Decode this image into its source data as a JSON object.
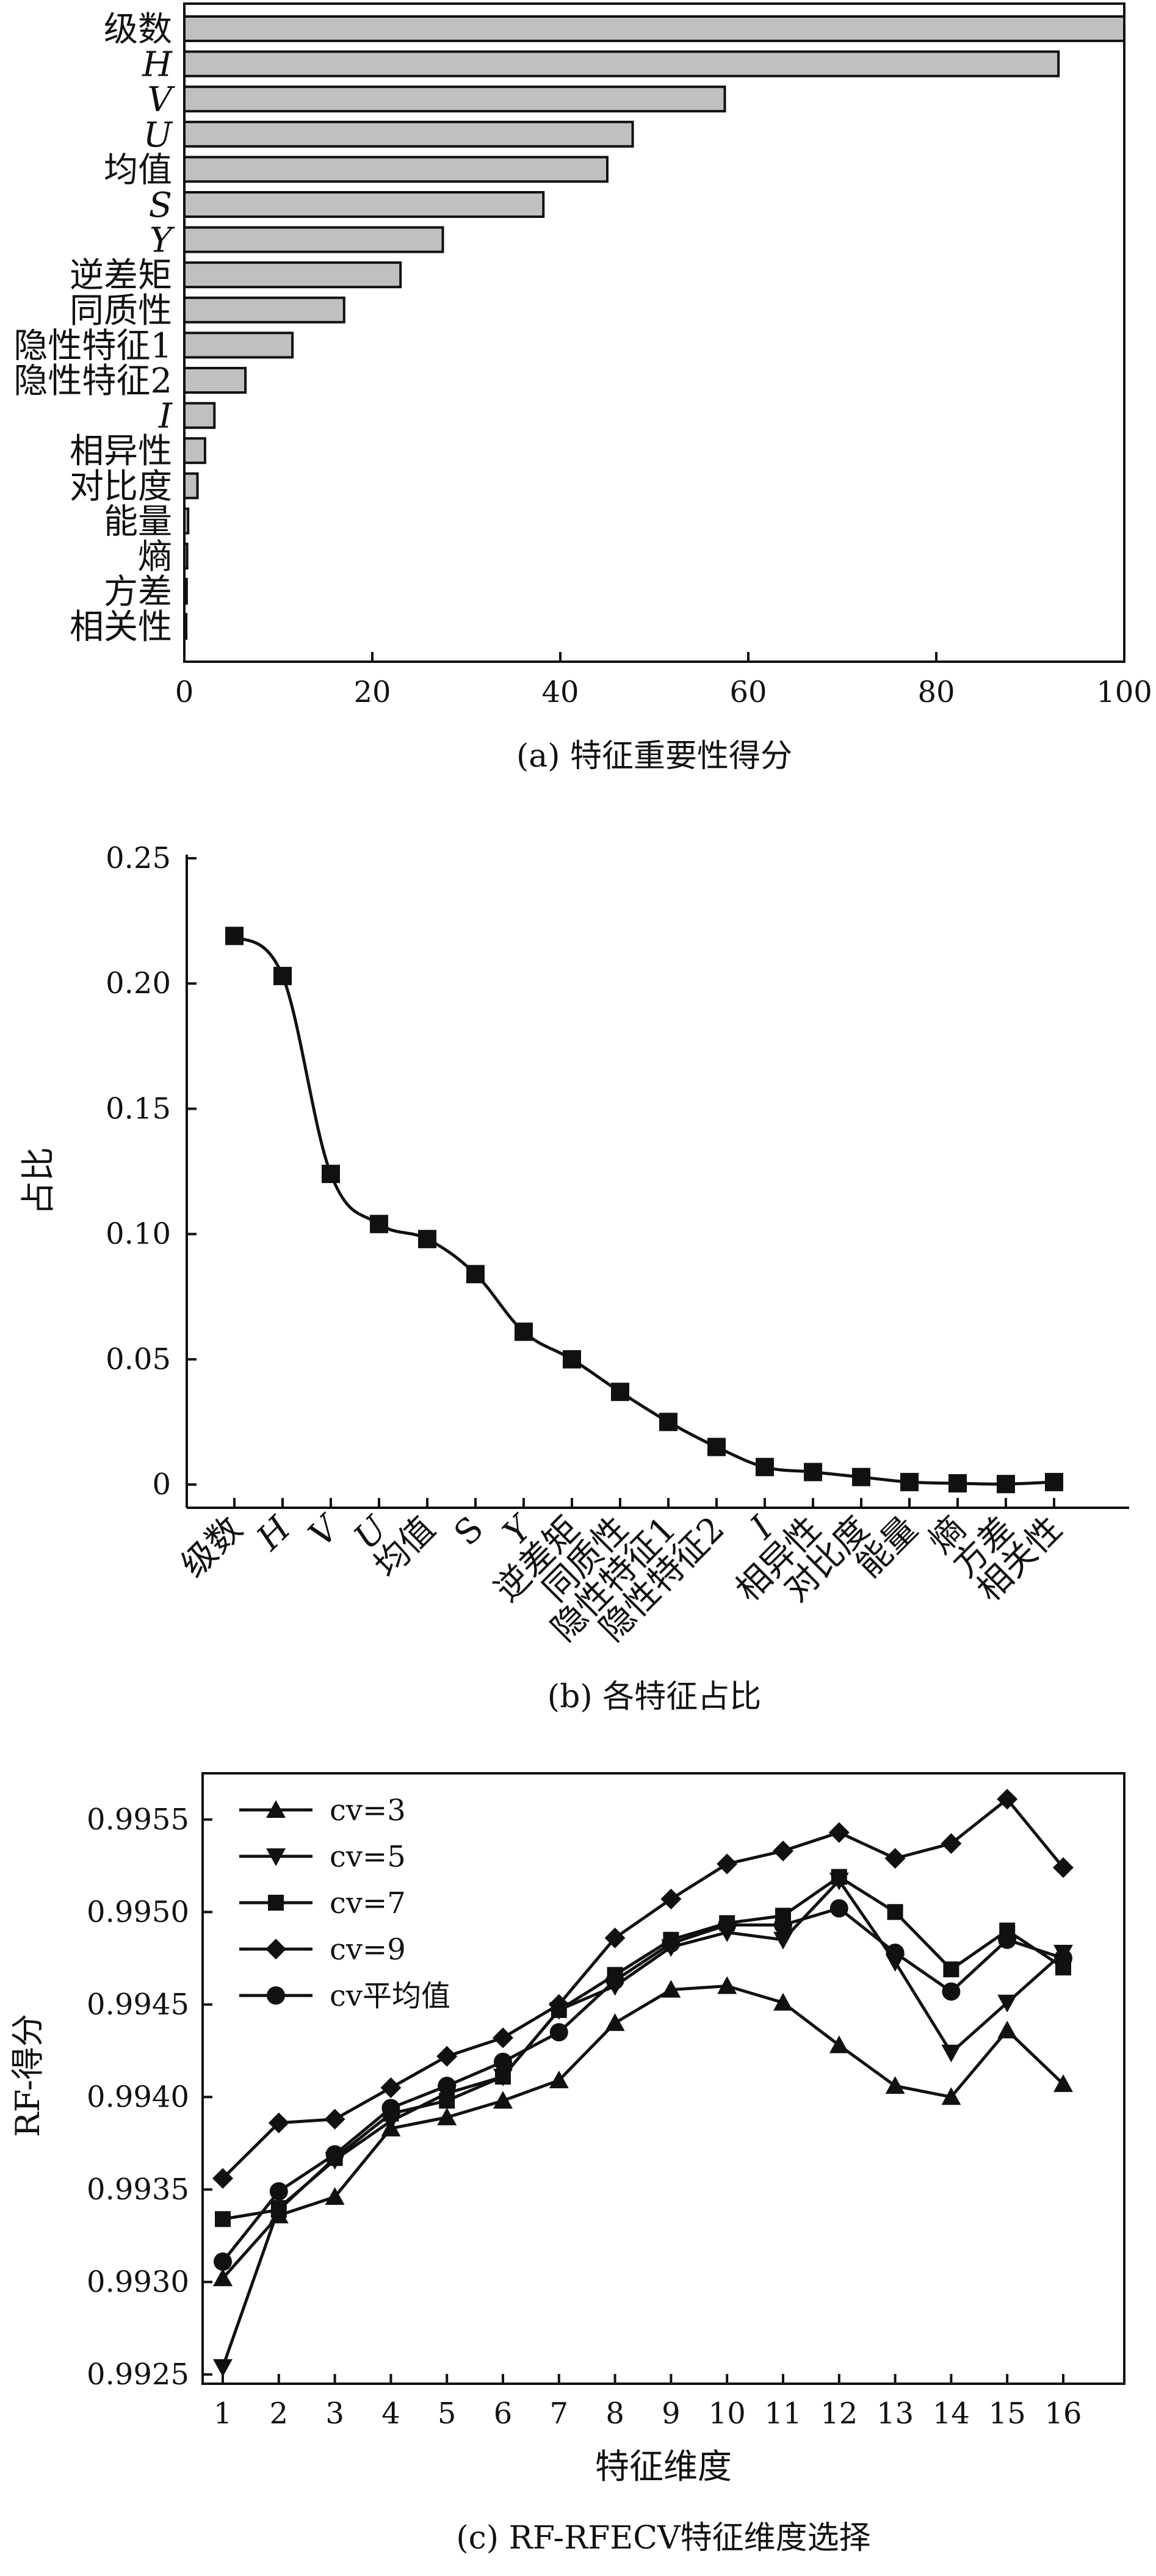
{
  "chart_data": [
    {
      "type": "bar",
      "orientation": "horizontal",
      "caption": "(a) 特征重要性得分",
      "categories": [
        "级数",
        "H",
        "V",
        "U",
        "均值",
        "S",
        "Y",
        "逆差矩",
        "同质性",
        "隐性特征1",
        "隐性特征2",
        "I",
        "相异性",
        "对比度",
        "能量",
        "熵",
        "方差",
        "相关性"
      ],
      "italic_categories": [
        "H",
        "V",
        "U",
        "S",
        "Y",
        "I"
      ],
      "values": [
        100,
        93,
        57.5,
        47.7,
        45,
        38.2,
        27.5,
        23,
        17,
        11.5,
        6.5,
        3.2,
        2.2,
        1.4,
        0.4,
        0.3,
        0.25,
        0.2
      ],
      "xlim": [
        0,
        100
      ],
      "xticks": [
        0,
        20,
        40,
        60,
        80,
        100
      ],
      "bar_color": "#c0c0c0"
    },
    {
      "type": "line",
      "caption": "(b) 各特征占比",
      "ylabel": "占比",
      "categories": [
        "级数",
        "H",
        "V",
        "U",
        "均值",
        "S",
        "Y",
        "逆差矩",
        "同质性",
        "隐性特征1",
        "隐性特征2",
        "I",
        "相异性",
        "对比度",
        "能量",
        "熵",
        "方差",
        "相关性"
      ],
      "italic_categories": [
        "H",
        "V",
        "U",
        "Y",
        "I"
      ],
      "values": [
        0.219,
        0.203,
        0.124,
        0.104,
        0.098,
        0.084,
        0.061,
        0.05,
        0.037,
        0.025,
        0.015,
        0.007,
        0.005,
        0.003,
        0.001,
        0.0005,
        0.0002,
        0.001
      ],
      "ylim": [
        0,
        0.25
      ],
      "yticks": [
        0,
        0.05,
        0.1,
        0.15,
        0.2,
        0.25
      ],
      "ytick_labels": [
        "0",
        "0.05",
        "0.10",
        "0.15",
        "0.20",
        "0.25"
      ],
      "marker": "square",
      "smooth": true
    },
    {
      "type": "line",
      "caption": "(c) RF-RFECV特征维度选择",
      "xlabel": "特征维度",
      "ylabel": "RF-得分",
      "x": [
        1,
        2,
        3,
        4,
        5,
        6,
        7,
        8,
        9,
        10,
        11,
        12,
        13,
        14,
        15,
        16
      ],
      "ylim": [
        0.99245,
        0.99575
      ],
      "yticks": [
        0.9925,
        0.993,
        0.9935,
        0.994,
        0.9945,
        0.995,
        0.9955
      ],
      "ytick_labels": [
        "0.9925",
        "0.9930",
        "0.9935",
        "0.9940",
        "0.9945",
        "0.9950",
        "0.9955"
      ],
      "legend": "top-left",
      "series": [
        {
          "name": "cv=3",
          "marker": "triangle-up",
          "values": [
            0.99302,
            0.99336,
            0.99346,
            0.99383,
            0.99389,
            0.99398,
            0.99409,
            0.9944,
            0.99458,
            0.9946,
            0.99451,
            0.99428,
            0.99406,
            0.994,
            0.99436,
            0.99407
          ]
        },
        {
          "name": "cv=5",
          "marker": "triangle-down",
          "values": [
            0.99254,
            0.9934,
            0.99366,
            0.99387,
            0.99402,
            0.99411,
            0.99447,
            0.9946,
            0.99481,
            0.99489,
            0.99485,
            0.99517,
            0.99473,
            0.99424,
            0.99451,
            0.99478
          ]
        },
        {
          "name": "cv=7",
          "marker": "square",
          "values": [
            0.99334,
            0.99339,
            0.99367,
            0.99391,
            0.99398,
            0.99411,
            0.99447,
            0.99466,
            0.99485,
            0.99494,
            0.99498,
            0.99519,
            0.995,
            0.99469,
            0.9949,
            0.9947
          ]
        },
        {
          "name": "cv=9",
          "marker": "diamond",
          "values": [
            0.99356,
            0.99386,
            0.99388,
            0.99405,
            0.99422,
            0.99432,
            0.9945,
            0.99486,
            0.99507,
            0.99526,
            0.99533,
            0.99543,
            0.99529,
            0.99537,
            0.99561,
            0.99524
          ]
        },
        {
          "name": "cv平均值",
          "marker": "circle",
          "values": [
            0.99311,
            0.99349,
            0.99369,
            0.99394,
            0.99406,
            0.99419,
            0.99435,
            0.99463,
            0.99483,
            0.99493,
            0.99493,
            0.99502,
            0.99478,
            0.99457,
            0.99485,
            0.99475
          ]
        }
      ]
    }
  ]
}
